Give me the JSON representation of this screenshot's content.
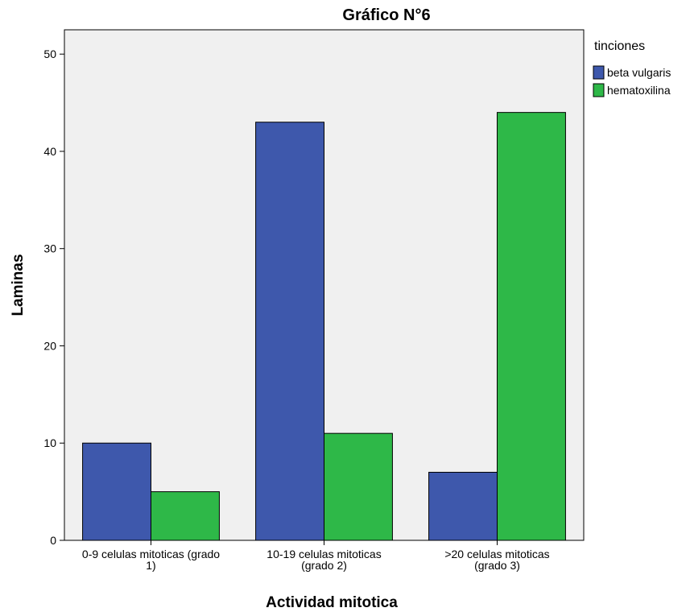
{
  "chart_data": {
    "type": "bar",
    "title": "Gráfico N°6",
    "xlabel": "Actividad mitotica",
    "ylabel": "Laminas",
    "ylim": [
      0,
      52.5
    ],
    "yticks": [
      0,
      10,
      20,
      30,
      40,
      50
    ],
    "categories": [
      [
        "0-9 celulas mitoticas (grado",
        "1)"
      ],
      [
        "10-19 celulas mitoticas",
        "(grado 2)"
      ],
      [
        ">20 celulas mitoticas",
        "(grado 3)"
      ]
    ],
    "legend_title": "tinciones",
    "legend_position": "right",
    "grid": false,
    "series": [
      {
        "name": "beta vulgaris",
        "color": "#3e58ac",
        "values": [
          10,
          43,
          7
        ]
      },
      {
        "name": "hematoxilina",
        "color": "#2eb848",
        "values": [
          5,
          11,
          44
        ]
      }
    ],
    "colors": {
      "plot_background": "#f0f0f0"
    }
  }
}
